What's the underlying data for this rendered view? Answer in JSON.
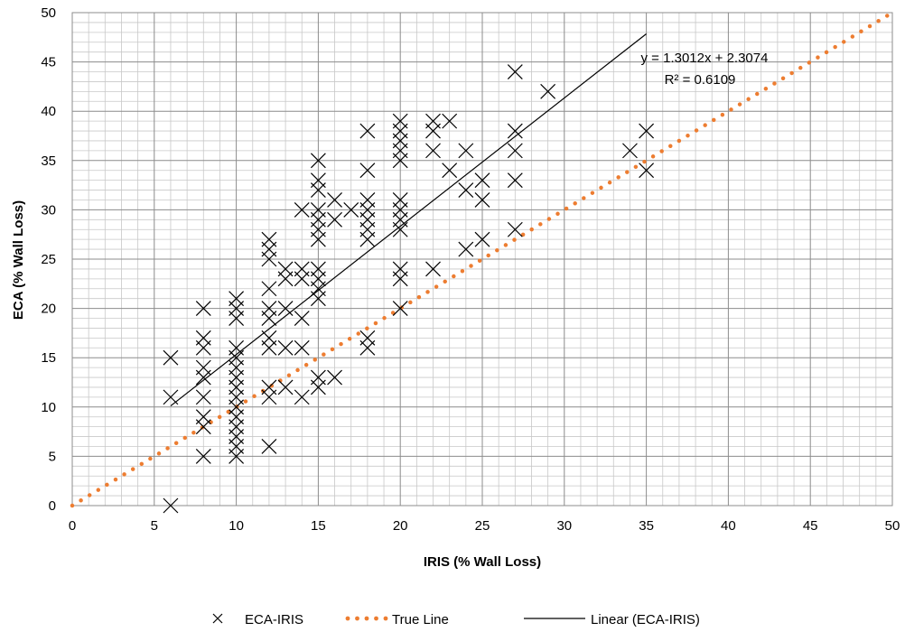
{
  "chart_data": {
    "type": "scatter",
    "xlabel": "IRIS (% Wall Loss)",
    "ylabel": "ECA (% Wall Loss)",
    "xlim": [
      0,
      50
    ],
    "ylim": [
      0,
      50
    ],
    "x_ticks": [
      0,
      5,
      10,
      15,
      20,
      25,
      30,
      35,
      40,
      45,
      50
    ],
    "y_ticks": [
      0,
      5,
      10,
      15,
      20,
      25,
      30,
      35,
      40,
      45,
      50
    ],
    "x_tick_labels": [
      "0",
      "5",
      "10",
      "15",
      "20",
      "25",
      "30",
      "35",
      "40",
      "45",
      "50"
    ],
    "y_tick_labels": [
      "0",
      "5",
      "10",
      "15",
      "20",
      "25",
      "30",
      "35",
      "40",
      "45",
      "50"
    ],
    "grid": {
      "major": true,
      "minor": true
    },
    "legend_position": "bottom",
    "series": [
      {
        "name": "ECA-IRIS",
        "type": "scatter",
        "marker": "x",
        "color": "#000000",
        "points": [
          [
            6,
            0
          ],
          [
            6,
            11
          ],
          [
            6,
            15
          ],
          [
            8,
            5
          ],
          [
            8,
            8
          ],
          [
            8,
            9
          ],
          [
            8,
            11
          ],
          [
            8,
            13
          ],
          [
            8,
            14
          ],
          [
            8,
            16
          ],
          [
            8,
            17
          ],
          [
            8,
            20
          ],
          [
            10,
            5
          ],
          [
            10,
            6
          ],
          [
            10,
            7
          ],
          [
            10,
            8
          ],
          [
            10,
            9
          ],
          [
            10,
            10
          ],
          [
            10,
            11
          ],
          [
            10,
            12
          ],
          [
            10,
            13
          ],
          [
            10,
            14
          ],
          [
            10,
            15
          ],
          [
            10,
            16
          ],
          [
            10,
            19
          ],
          [
            10,
            20
          ],
          [
            10,
            21
          ],
          [
            12,
            6
          ],
          [
            12,
            11
          ],
          [
            12,
            12
          ],
          [
            12,
            16
          ],
          [
            12,
            17
          ],
          [
            12,
            19
          ],
          [
            12,
            20
          ],
          [
            12,
            22
          ],
          [
            12,
            25
          ],
          [
            12,
            26
          ],
          [
            12,
            27
          ],
          [
            13,
            12
          ],
          [
            13,
            16
          ],
          [
            13,
            20
          ],
          [
            13,
            23
          ],
          [
            13,
            24
          ],
          [
            14,
            11
          ],
          [
            14,
            16
          ],
          [
            14,
            19
          ],
          [
            14,
            23
          ],
          [
            14,
            24
          ],
          [
            14,
            30
          ],
          [
            15,
            12
          ],
          [
            15,
            13
          ],
          [
            15,
            21
          ],
          [
            15,
            22
          ],
          [
            15,
            23
          ],
          [
            15,
            24
          ],
          [
            15,
            27
          ],
          [
            15,
            28
          ],
          [
            15,
            29
          ],
          [
            15,
            30
          ],
          [
            15,
            32
          ],
          [
            15,
            33
          ],
          [
            15,
            35
          ],
          [
            16,
            13
          ],
          [
            16,
            29
          ],
          [
            16,
            31
          ],
          [
            17,
            30
          ],
          [
            18,
            16
          ],
          [
            18,
            17
          ],
          [
            18,
            27
          ],
          [
            18,
            28
          ],
          [
            18,
            29
          ],
          [
            18,
            30
          ],
          [
            18,
            31
          ],
          [
            18,
            34
          ],
          [
            18,
            38
          ],
          [
            20,
            20
          ],
          [
            20,
            23
          ],
          [
            20,
            24
          ],
          [
            20,
            28
          ],
          [
            20,
            29
          ],
          [
            20,
            30
          ],
          [
            20,
            31
          ],
          [
            20,
            35
          ],
          [
            20,
            36
          ],
          [
            20,
            37
          ],
          [
            20,
            38
          ],
          [
            20,
            39
          ],
          [
            22,
            24
          ],
          [
            22,
            36
          ],
          [
            22,
            38
          ],
          [
            22,
            39
          ],
          [
            23,
            34
          ],
          [
            23,
            39
          ],
          [
            24,
            26
          ],
          [
            24,
            32
          ],
          [
            24,
            36
          ],
          [
            25,
            27
          ],
          [
            25,
            31
          ],
          [
            25,
            33
          ],
          [
            27,
            28
          ],
          [
            27,
            33
          ],
          [
            27,
            36
          ],
          [
            27,
            38
          ],
          [
            27,
            44
          ],
          [
            29,
            42
          ],
          [
            34,
            36
          ],
          [
            35,
            34
          ],
          [
            35,
            38
          ]
        ]
      },
      {
        "name": "True Line",
        "type": "line",
        "style": "dotted",
        "color": "#ED7D31",
        "x": [
          0,
          50
        ],
        "y": [
          0,
          50
        ]
      },
      {
        "name": "Linear (ECA-IRIS)",
        "type": "line",
        "style": "solid",
        "color": "#000000",
        "slope": 1.3012,
        "intercept": 2.3074,
        "x_range": [
          6,
          35
        ]
      }
    ],
    "annotations": {
      "equation": "y = 1.3012x + 2.3074",
      "r_squared": "R² = 0.6109"
    }
  }
}
